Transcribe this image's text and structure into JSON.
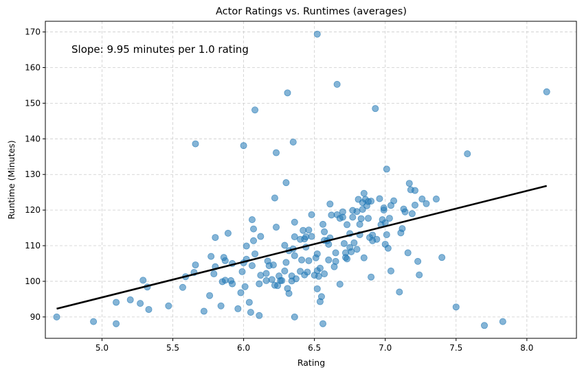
{
  "chart_data": {
    "type": "scatter",
    "title": "Actor Ratings vs. Runtimes (averages)",
    "xlabel": "Rating",
    "ylabel": "Runtime (Minutes)",
    "xlim": [
      4.6,
      8.35
    ],
    "ylim": [
      84,
      173
    ],
    "xticks": [
      5.0,
      5.5,
      6.0,
      6.5,
      7.0,
      7.5,
      8.0
    ],
    "xtick_labels": [
      "5.0",
      "5.5",
      "6.0",
      "6.5",
      "7.0",
      "7.5",
      "8.0"
    ],
    "yticks": [
      90,
      100,
      110,
      120,
      130,
      140,
      150,
      160,
      170
    ],
    "ytick_labels": [
      "90",
      "100",
      "110",
      "120",
      "130",
      "140",
      "150",
      "160",
      "170"
    ],
    "grid": true,
    "annotation": "Slope: 9.95 minutes per 1.0 rating",
    "point_color": "#1f77b4",
    "line_color": "#000000",
    "regression_line": {
      "x": [
        4.68,
        8.14
      ],
      "y": [
        92.3,
        126.8
      ]
    },
    "points": [
      [
        4.68,
        90.0
      ],
      [
        4.94,
        88.7
      ],
      [
        5.1,
        88.1
      ],
      [
        5.1,
        94.1
      ],
      [
        5.2,
        94.8
      ],
      [
        5.27,
        93.8
      ],
      [
        5.29,
        100.3
      ],
      [
        5.32,
        98.4
      ],
      [
        5.33,
        92.1
      ],
      [
        5.47,
        93.1
      ],
      [
        5.57,
        98.3
      ],
      [
        5.59,
        101.3
      ],
      [
        5.65,
        102.5
      ],
      [
        5.66,
        104.6
      ],
      [
        5.66,
        138.6
      ],
      [
        5.72,
        91.6
      ],
      [
        5.76,
        96.0
      ],
      [
        5.77,
        107.0
      ],
      [
        5.79,
        102.1
      ],
      [
        5.8,
        104.1
      ],
      [
        5.8,
        112.3
      ],
      [
        5.84,
        93.1
      ],
      [
        5.85,
        99.9
      ],
      [
        5.86,
        106.7
      ],
      [
        5.87,
        105.8
      ],
      [
        5.87,
        100.3
      ],
      [
        5.89,
        113.5
      ],
      [
        5.91,
        100.2
      ],
      [
        5.92,
        105.0
      ],
      [
        5.92,
        99.3
      ],
      [
        5.96,
        92.3
      ],
      [
        5.98,
        96.8
      ],
      [
        5.99,
        102.7
      ],
      [
        6.0,
        105.2
      ],
      [
        6.0,
        138.1
      ],
      [
        6.01,
        98.5
      ],
      [
        6.02,
        106.2
      ],
      [
        6.02,
        109.9
      ],
      [
        6.04,
        94.1
      ],
      [
        6.05,
        91.3
      ],
      [
        6.06,
        104.4
      ],
      [
        6.06,
        117.3
      ],
      [
        6.07,
        114.7
      ],
      [
        6.07,
        111.4
      ],
      [
        6.08,
        148.1
      ],
      [
        6.08,
        107.7
      ],
      [
        6.11,
        99.3
      ],
      [
        6.11,
        90.4
      ],
      [
        6.12,
        112.6
      ],
      [
        6.12,
        101.7
      ],
      [
        6.16,
        102.2
      ],
      [
        6.16,
        100.2
      ],
      [
        6.17,
        105.7
      ],
      [
        6.18,
        104.4
      ],
      [
        6.2,
        100.5
      ],
      [
        6.21,
        104.6
      ],
      [
        6.22,
        98.9
      ],
      [
        6.22,
        123.4
      ],
      [
        6.23,
        136.1
      ],
      [
        6.23,
        115.2
      ],
      [
        6.24,
        98.8
      ],
      [
        6.25,
        101.5
      ],
      [
        6.26,
        100.2
      ],
      [
        6.27,
        100.2
      ],
      [
        6.29,
        110.1
      ],
      [
        6.29,
        102.9
      ],
      [
        6.3,
        105.3
      ],
      [
        6.3,
        127.7
      ],
      [
        6.31,
        152.9
      ],
      [
        6.31,
        98.0
      ],
      [
        6.32,
        108.6
      ],
      [
        6.32,
        96.6
      ],
      [
        6.34,
        101.5
      ],
      [
        6.34,
        100.1
      ],
      [
        6.35,
        109.1
      ],
      [
        6.35,
        139.1
      ],
      [
        6.36,
        116.6
      ],
      [
        6.36,
        112.5
      ],
      [
        6.36,
        107.2
      ],
      [
        6.37,
        100.7
      ],
      [
        6.36,
        90.0
      ],
      [
        6.4,
        111.8
      ],
      [
        6.4,
        102.8
      ],
      [
        6.41,
        106.0
      ],
      [
        6.42,
        114.3
      ],
      [
        6.43,
        111.9
      ],
      [
        6.43,
        101.8
      ],
      [
        6.44,
        109.6
      ],
      [
        6.44,
        112.5
      ],
      [
        6.45,
        102.6
      ],
      [
        6.46,
        105.8
      ],
      [
        6.46,
        114.4
      ],
      [
        6.48,
        118.7
      ],
      [
        6.48,
        112.6
      ],
      [
        6.5,
        101.7
      ],
      [
        6.51,
        106.6
      ],
      [
        6.52,
        103.0
      ],
      [
        6.52,
        107.7
      ],
      [
        6.52,
        97.9
      ],
      [
        6.52,
        169.4
      ],
      [
        6.53,
        101.4
      ],
      [
        6.54,
        103.7
      ],
      [
        6.54,
        94.3
      ],
      [
        6.55,
        95.7
      ],
      [
        6.56,
        116.0
      ],
      [
        6.57,
        111.5
      ],
      [
        6.57,
        102.1
      ],
      [
        6.57,
        113.9
      ],
      [
        6.56,
        88.1
      ],
      [
        6.59,
        111.4
      ],
      [
        6.6,
        110.4
      ],
      [
        6.6,
        106.0
      ],
      [
        6.61,
        112.2
      ],
      [
        6.61,
        121.7
      ],
      [
        6.62,
        118.6
      ],
      [
        6.64,
        104.1
      ],
      [
        6.65,
        105.6
      ],
      [
        6.65,
        108.0
      ],
      [
        6.66,
        118.7
      ],
      [
        6.66,
        155.3
      ],
      [
        6.68,
        99.2
      ],
      [
        6.68,
        117.7
      ],
      [
        6.7,
        119.5
      ],
      [
        6.7,
        118.0
      ],
      [
        6.71,
        110.6
      ],
      [
        6.72,
        106.7
      ],
      [
        6.72,
        108.0
      ],
      [
        6.73,
        106.3
      ],
      [
        6.73,
        115.9
      ],
      [
        6.75,
        109.5
      ],
      [
        6.75,
        113.4
      ],
      [
        6.76,
        108.3
      ],
      [
        6.77,
        119.9
      ],
      [
        6.77,
        118.0
      ],
      [
        6.78,
        110.8
      ],
      [
        6.8,
        109.0
      ],
      [
        6.8,
        119.6
      ],
      [
        6.81,
        123.0
      ],
      [
        6.82,
        116.0
      ],
      [
        6.82,
        113.1
      ],
      [
        6.83,
        117.6
      ],
      [
        6.84,
        122.1
      ],
      [
        6.84,
        120.2
      ],
      [
        6.85,
        106.6
      ],
      [
        6.85,
        124.7
      ],
      [
        6.86,
        123.0
      ],
      [
        6.87,
        121.2
      ],
      [
        6.88,
        117.7
      ],
      [
        6.88,
        122.4
      ],
      [
        6.89,
        112.3
      ],
      [
        6.9,
        122.5
      ],
      [
        6.91,
        113.0
      ],
      [
        6.91,
        111.4
      ],
      [
        6.9,
        101.2
      ],
      [
        6.93,
        148.5
      ],
      [
        6.94,
        111.8
      ],
      [
        6.96,
        123.2
      ],
      [
        6.97,
        115.9
      ],
      [
        6.98,
        117.3
      ],
      [
        6.99,
        120.0
      ],
      [
        6.99,
        120.6
      ],
      [
        7.0,
        116.4
      ],
      [
        7.0,
        110.4
      ],
      [
        7.01,
        113.1
      ],
      [
        7.01,
        131.5
      ],
      [
        7.02,
        109.3
      ],
      [
        7.03,
        117.7
      ],
      [
        7.04,
        121.3
      ],
      [
        7.04,
        102.9
      ],
      [
        7.06,
        122.6
      ],
      [
        7.1,
        97.0
      ],
      [
        7.11,
        113.6
      ],
      [
        7.12,
        114.8
      ],
      [
        7.13,
        120.3
      ],
      [
        7.14,
        119.5
      ],
      [
        7.16,
        108.0
      ],
      [
        7.17,
        127.5
      ],
      [
        7.18,
        125.7
      ],
      [
        7.19,
        119.0
      ],
      [
        7.21,
        121.4
      ],
      [
        7.21,
        125.5
      ],
      [
        7.23,
        105.6
      ],
      [
        7.24,
        101.8
      ],
      [
        7.26,
        123.1
      ],
      [
        7.29,
        121.8
      ],
      [
        7.36,
        123.1
      ],
      [
        7.4,
        106.7
      ],
      [
        7.5,
        92.8
      ],
      [
        7.58,
        135.8
      ],
      [
        7.7,
        87.6
      ],
      [
        7.83,
        88.7
      ],
      [
        8.14,
        153.2
      ]
    ]
  }
}
